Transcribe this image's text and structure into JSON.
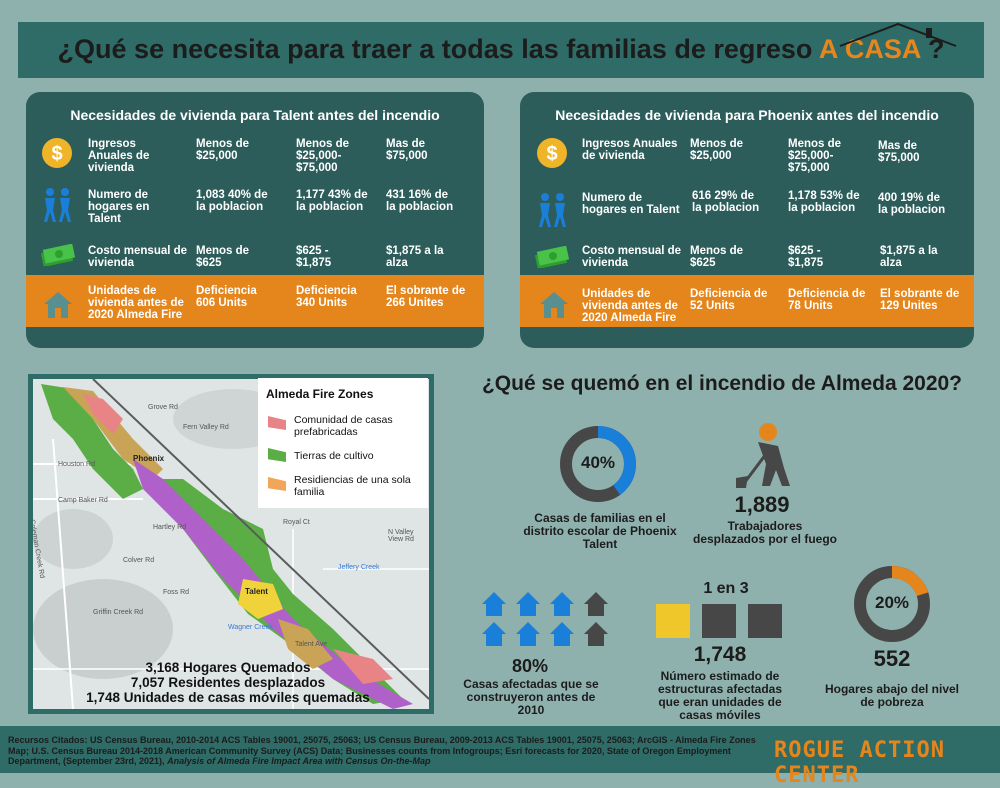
{
  "title": {
    "main": "¿Qué se necesita para traer a todas las familias de regreso",
    "highlight": "A CASA",
    "end": "?"
  },
  "talent": {
    "title": "Necesidades de vivienda para Talent antes del incendio",
    "rows": [
      {
        "label": "Ingresos Anuales de vivienda",
        "c1": "Menos de $25,000",
        "c2": "Menos de $25,000- $75,000",
        "c3": "Mas de $75,000"
      },
      {
        "label": "Numero de hogares en Talent",
        "c1": "1,083 40% de la poblacion",
        "c2": "1,177 43% de la poblacion",
        "c3": "431 16% de la poblacion"
      },
      {
        "label": "Costo mensual de vivienda",
        "c1": "Menos de $625",
        "c2": "$625 - $1,875",
        "c3": "$1,875 a la alza"
      },
      {
        "label": "Unidades de vivienda antes de 2020 Almeda Fire",
        "c1": "Deficiencia 606 Units",
        "c2": "Deficiencia 340 Units",
        "c3": "El sobrante de 266 Unites"
      }
    ]
  },
  "phoenix": {
    "title": "Necesidades de vivienda para Phoenix antes del incendio",
    "rows": [
      {
        "label": "Ingresos Anuales de vivienda",
        "c1": "Menos de $25,000",
        "c2": "Menos de $25,000- $75,000",
        "c3": "Mas de $75,000"
      },
      {
        "label": "Numero de hogares en Talent",
        "c1": "616 29% de la poblacion",
        "c2": "1,178 53% de la poblacion",
        "c3": "400 19% de la poblacion"
      },
      {
        "label": "Costo mensual de vivienda",
        "c1": "Menos de $625",
        "c2": "$625 - $1,875",
        "c3": "$1,875 a la alza"
      },
      {
        "label": "Unidades de vivienda antes de 2020 Almeda Fire",
        "c1": "Deficiencia de 52 Units",
        "c2": "Deficiencia de 78 Units",
        "c3": "El sobrante de 129 Unites"
      }
    ]
  },
  "map": {
    "legend_title": "Almeda Fire Zones",
    "legend": [
      "Comunidad de casas prefabricadas",
      "Tierras de cultivo",
      "Residiencias de una sola familia"
    ],
    "legend_colors": [
      "#e98486",
      "#5aae45",
      "#f2a65a"
    ],
    "towns": [
      "Phoenix",
      "Talent"
    ],
    "streets": [
      "Fern Valley Rd",
      "Houston Rd",
      "Camp Baker Rd",
      "Coleman Creek Rd",
      "Colver Rd",
      "Hartley Rd",
      "Foss Rd",
      "Jeffery Creek",
      "Royal Ct",
      "N Valley View Rd",
      "Talent Ave",
      "Wagner Creek",
      "Griffin Creek Rd",
      "Grove Rd"
    ],
    "stats": [
      "3,168 Hogares Quemados",
      "7,057 Residentes desplazados",
      "1,748 Unidades de casas móviles quemadas"
    ]
  },
  "burn": {
    "title": "¿Qué se quemó en el incendio de Almeda 2020?",
    "pct1": "40%",
    "pct1_value": 40,
    "pct1_label": "Casas de familias en el distrito escolar de Phoenix Talent",
    "workers": "1,889",
    "workers_label": "Trabajadores desplazados por el fuego",
    "houses_pct": "80%",
    "houses_label": "Casas afectadas que se construyeron antes de 2010",
    "ratio": "1 en 3",
    "mobile": "1,748",
    "mobile_label": "Número estimado de estructuras afectadas que eran unidades de casas móviles",
    "pct2": "20%",
    "pct2_value": 20,
    "poverty": "552",
    "poverty_label": "Hogares abajo del nivel de pobreza"
  },
  "colors": {
    "accent": "#e5861c",
    "dark_teal": "#2d5d5b",
    "blue": "#1a7fd9"
  },
  "footer": {
    "sources": "Recursos Citados: US Census Bureau, 2010-2014 ACS Tables 19001, 25075, 25063; US Census Bureau, 2009-2013 ACS Tables 19001, 25075, 25063; ArcGIS - Almeda Fire Zones Map; U.S. Census Bureau 2014-2018 American Community Survey (ACS) Data; Businesses counts from Infogroups; Esri forecasts for 2020, State of Oregon Employment Department, (September 23rd, 2021),",
    "sources_italic": "Analysis of Almeda Fire Impact Area with Census On-the-Map",
    "brand": "ROGUE ACTION CENTER"
  }
}
